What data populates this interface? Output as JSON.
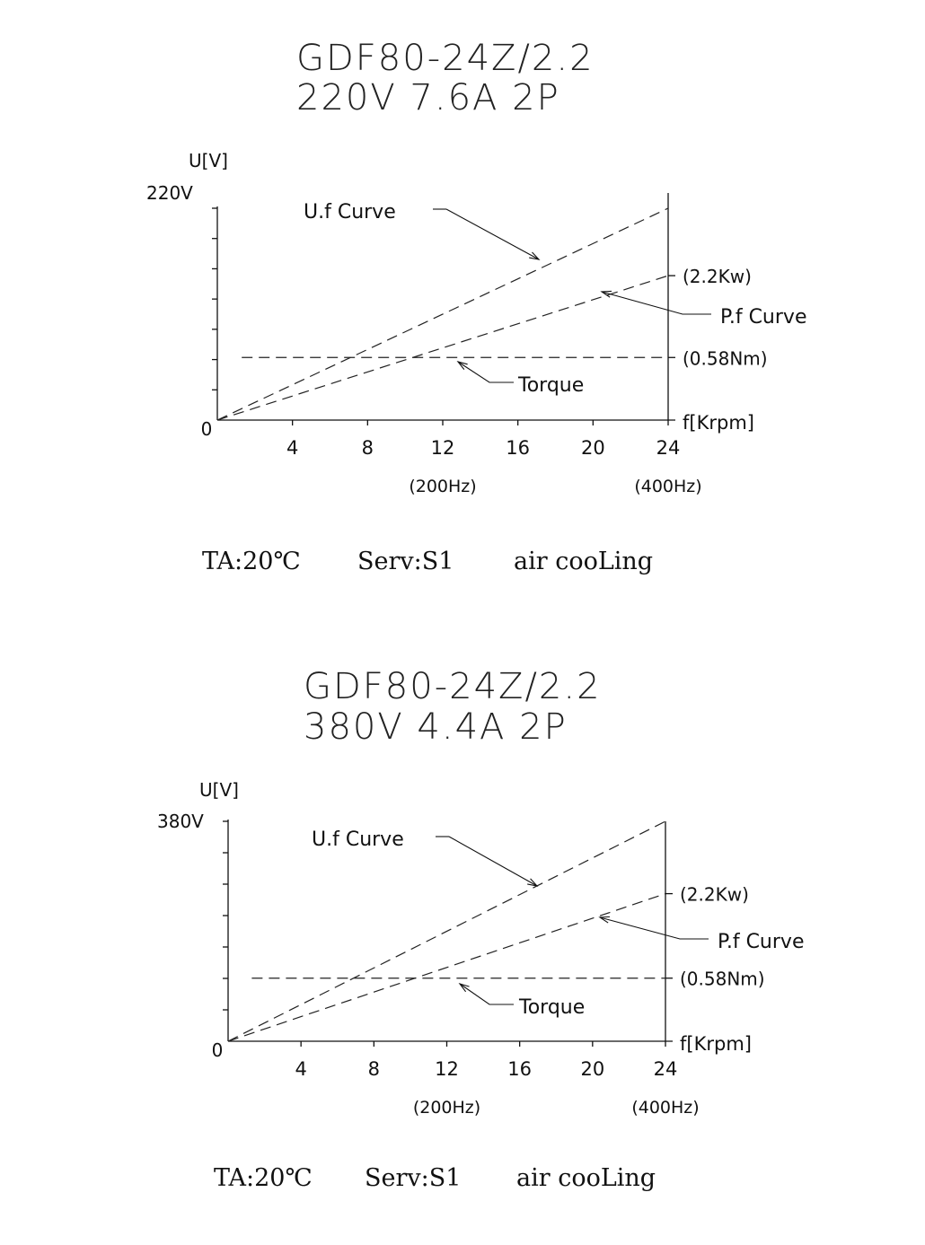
{
  "charts": [
    {
      "title_line1": "GDF80-24Z/2.2",
      "title_line2": "220V 7.6A   2P",
      "y_axis_label": "U[V]",
      "y_max_label": "220V",
      "origin_label": "0",
      "x_axis_label": "f[Krpm]",
      "x_ticks": [
        "4",
        "8",
        "12",
        "16",
        "20",
        "24"
      ],
      "hz_labels": [
        {
          "at": 12,
          "text": "(200Hz)"
        },
        {
          "at": 24,
          "text": "(400Hz)"
        }
      ],
      "uf_label": "U.f Curve",
      "pf_label": "P.f Curve",
      "torque_label": "Torque",
      "power_label": "(2.2Kw)",
      "torque_value_label": "(0.58Nm)",
      "footer": {
        "ta": "TA:20℃",
        "serv": "Serv:S1",
        "cooling": "air cooLing"
      }
    },
    {
      "title_line1": "GDF80-24Z/2.2",
      "title_line2": "380V 4.4A   2P",
      "y_axis_label": "U[V]",
      "y_max_label": "380V",
      "origin_label": "0",
      "x_axis_label": "f[Krpm]",
      "x_ticks": [
        "4",
        "8",
        "12",
        "16",
        "20",
        "24"
      ],
      "hz_labels": [
        {
          "at": 12,
          "text": "(200Hz)"
        },
        {
          "at": 24,
          "text": "(400Hz)"
        }
      ],
      "uf_label": "U.f Curve",
      "pf_label": "P.f Curve",
      "torque_label": "Torque",
      "power_label": "(2.2Kw)",
      "torque_value_label": "(0.58Nm)",
      "footer": {
        "ta": "TA:20℃",
        "serv": "Serv:S1",
        "cooling": "air cooLing"
      }
    }
  ],
  "chart_data": [
    {
      "type": "line",
      "title": "GDF80-24Z/2.2 220V 7.6A 2P",
      "xlabel": "f[Krpm]",
      "ylabel": "U[V]",
      "xlim": [
        0,
        24
      ],
      "ylim": [
        0,
        220
      ],
      "x_ticks": [
        4,
        8,
        12,
        16,
        20,
        24
      ],
      "series": [
        {
          "name": "U.f Curve",
          "x": [
            0,
            24
          ],
          "y": [
            0,
            220
          ]
        },
        {
          "name": "P.f Curve",
          "x": [
            0,
            24
          ],
          "y": [
            0,
            150
          ]
        },
        {
          "name": "Torque",
          "x": [
            1.3,
            24
          ],
          "y": [
            65,
            65
          ]
        }
      ],
      "annotations": [
        "(2.2Kw)",
        "(0.58Nm)",
        "(200Hz)",
        "(400Hz)"
      ]
    },
    {
      "type": "line",
      "title": "GDF80-24Z/2.2 380V 4.4A 2P",
      "xlabel": "f[Krpm]",
      "ylabel": "U[V]",
      "xlim": [
        0,
        24
      ],
      "ylim": [
        0,
        380
      ],
      "x_ticks": [
        4,
        8,
        12,
        16,
        20,
        24
      ],
      "series": [
        {
          "name": "U.f Curve",
          "x": [
            0,
            24
          ],
          "y": [
            0,
            380
          ]
        },
        {
          "name": "P.f Curve",
          "x": [
            0,
            24
          ],
          "y": [
            0,
            255
          ]
        },
        {
          "name": "Torque",
          "x": [
            1.3,
            24
          ],
          "y": [
            109,
            109
          ]
        }
      ],
      "annotations": [
        "(2.2Kw)",
        "(0.58Nm)",
        "(200Hz)",
        "(400Hz)"
      ]
    }
  ]
}
